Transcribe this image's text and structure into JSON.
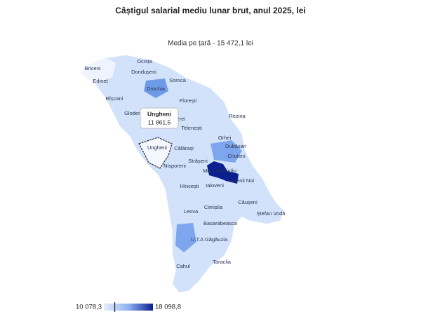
{
  "title": "Câștigul salarial mediu lunar brut, anul 2025, lei",
  "subtitle": "Media pe țară - 15 472,1 lei",
  "regions": [
    "Ocnița",
    "Briceni",
    "Dondușeni",
    "Edineț",
    "Soroca",
    "Drochia",
    "Rîșcani",
    "Florești",
    "Glodeni",
    "Sîngerei",
    "Telenești",
    "Rezina",
    "Orhei",
    "Dubăsari",
    "Ungheni",
    "Călărași",
    "Criuleni",
    "Strășeni",
    "Nisporeni",
    "Mun. Chișinău",
    "Anenii Noi",
    "Ialoveni",
    "Hîncești",
    "Căușeni",
    "Ștefan Vodă",
    "Leova",
    "Cimișlia",
    "Basarabeasca",
    "U.T.A Găgăuzia",
    "Taraclia",
    "Cahul"
  ],
  "tooltip": {
    "region": "Ungheni",
    "value": 11861.5,
    "value_label": "11 861,5"
  },
  "legend": {
    "min": 10078.3,
    "min_label": "10 078,3",
    "max": 18098.8,
    "max_label": "18 098,8"
  }
}
